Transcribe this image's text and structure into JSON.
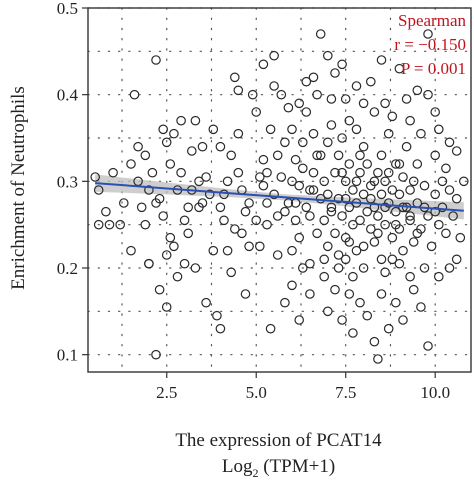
{
  "chart_data": {
    "type": "scatter",
    "title": "",
    "xlabel_line1": "The expression of PCAT14",
    "xlabel_line2_prefix": "Log",
    "xlabel_line2_sub": "2",
    "xlabel_line2_suffix": " (TPM+1)",
    "ylabel": "Enrichment of Neutrophils",
    "xlim": [
      0.3,
      11.0
    ],
    "ylim": [
      0.08,
      0.5
    ],
    "xticks": [
      2.5,
      5.0,
      7.5,
      10.0
    ],
    "xtick_labels": [
      "2.5",
      "5.0",
      "7.5",
      "10.0"
    ],
    "yticks": [
      0.1,
      0.2,
      0.3,
      0.4,
      0.5
    ],
    "ytick_labels": [
      "0.1",
      "0.2",
      "0.3",
      "0.4",
      "0.5"
    ],
    "grid": true,
    "annotation": {
      "method": "Spearman",
      "r_text": "r = −0.150",
      "p_text": "P = 0.001"
    },
    "regression": {
      "x": [
        0.5,
        10.8
      ],
      "y": [
        0.298,
        0.266
      ],
      "ci_halfwidth": 0.01
    },
    "points": [
      [
        0.5,
        0.305
      ],
      [
        0.6,
        0.29
      ],
      [
        0.9,
        0.25
      ],
      [
        1.2,
        0.25
      ],
      [
        0.6,
        0.25
      ],
      [
        1.5,
        0.22
      ],
      [
        1.6,
        0.4
      ],
      [
        1.7,
        0.34
      ],
      [
        1.9,
        0.33
      ],
      [
        1.7,
        0.3
      ],
      [
        2.0,
        0.29
      ],
      [
        2.0,
        0.205
      ],
      [
        2.0,
        0.205
      ],
      [
        1.9,
        0.25
      ],
      [
        2.1,
        0.31
      ],
      [
        2.2,
        0.275
      ],
      [
        2.2,
        0.44
      ],
      [
        2.3,
        0.28
      ],
      [
        2.4,
        0.26
      ],
      [
        2.5,
        0.345
      ],
      [
        2.6,
        0.235
      ],
      [
        2.6,
        0.32
      ],
      [
        2.7,
        0.355
      ],
      [
        2.8,
        0.29
      ],
      [
        2.9,
        0.37
      ],
      [
        2.9,
        0.31
      ],
      [
        3.0,
        0.255
      ],
      [
        3.1,
        0.27
      ],
      [
        3.1,
        0.24
      ],
      [
        3.3,
        0.2
      ],
      [
        3.3,
        0.37
      ],
      [
        3.4,
        0.3
      ],
      [
        3.5,
        0.275
      ],
      [
        3.5,
        0.34
      ],
      [
        2.3,
        0.175
      ],
      [
        2.5,
        0.155
      ],
      [
        2.2,
        0.1
      ],
      [
        3.8,
        0.22
      ],
      [
        3.8,
        0.36
      ],
      [
        3.6,
        0.16
      ],
      [
        4.0,
        0.34
      ],
      [
        4.0,
        0.27
      ],
      [
        4.1,
        0.255
      ],
      [
        4.2,
        0.3
      ],
      [
        4.2,
        0.22
      ],
      [
        4.3,
        0.33
      ],
      [
        4.4,
        0.42
      ],
      [
        4.5,
        0.405
      ],
      [
        4.5,
        0.355
      ],
      [
        4.5,
        0.31
      ],
      [
        4.6,
        0.29
      ],
      [
        4.7,
        0.265
      ],
      [
        4.6,
        0.24
      ],
      [
        4.8,
        0.225
      ],
      [
        4.3,
        0.195
      ],
      [
        4.0,
        0.13
      ],
      [
        3.9,
        0.145
      ],
      [
        5.0,
        0.38
      ],
      [
        5.1,
        0.305
      ],
      [
        5.2,
        0.325
      ],
      [
        5.2,
        0.295
      ],
      [
        5.3,
        0.275
      ],
      [
        5.3,
        0.25
      ],
      [
        5.4,
        0.36
      ],
      [
        5.5,
        0.445
      ],
      [
        5.5,
        0.285
      ],
      [
        5.6,
        0.33
      ],
      [
        5.6,
        0.215
      ],
      [
        5.7,
        0.305
      ],
      [
        5.8,
        0.265
      ],
      [
        5.8,
        0.345
      ],
      [
        5.9,
        0.385
      ],
      [
        5.9,
        0.275
      ],
      [
        6.0,
        0.3
      ],
      [
        6.0,
        0.18
      ],
      [
        6.1,
        0.325
      ],
      [
        6.1,
        0.255
      ],
      [
        6.2,
        0.235
      ],
      [
        6.2,
        0.295
      ],
      [
        6.3,
        0.315
      ],
      [
        6.3,
        0.345
      ],
      [
        6.4,
        0.27
      ],
      [
        6.4,
        0.38
      ],
      [
        6.5,
        0.26
      ],
      [
        6.5,
        0.29
      ],
      [
        6.5,
        0.205
      ],
      [
        6.6,
        0.355
      ],
      [
        6.6,
        0.31
      ],
      [
        6.7,
        0.24
      ],
      [
        6.7,
        0.4
      ],
      [
        6.8,
        0.28
      ],
      [
        6.8,
        0.33
      ],
      [
        6.9,
        0.255
      ],
      [
        6.9,
        0.3
      ],
      [
        7.0,
        0.345
      ],
      [
        7.0,
        0.225
      ],
      [
        7.0,
        0.285
      ],
      [
        7.1,
        0.395
      ],
      [
        7.1,
        0.265
      ],
      [
        7.2,
        0.31
      ],
      [
        7.2,
        0.24
      ],
      [
        7.3,
        0.33
      ],
      [
        7.3,
        0.28
      ],
      [
        7.3,
        0.2
      ],
      [
        7.4,
        0.35
      ],
      [
        7.4,
        0.26
      ],
      [
        7.5,
        0.3
      ],
      [
        7.5,
        0.395
      ],
      [
        7.5,
        0.235
      ],
      [
        7.6,
        0.27
      ],
      [
        7.6,
        0.32
      ],
      [
        7.7,
        0.25
      ],
      [
        7.7,
        0.29
      ],
      [
        7.8,
        0.36
      ],
      [
        7.8,
        0.22
      ],
      [
        7.8,
        0.275
      ],
      [
        7.9,
        0.31
      ],
      [
        7.9,
        0.255
      ],
      [
        8.0,
        0.34
      ],
      [
        8.0,
        0.285
      ],
      [
        8.0,
        0.2
      ],
      [
        8.1,
        0.265
      ],
      [
        8.1,
        0.32
      ],
      [
        8.2,
        0.245
      ],
      [
        8.2,
        0.295
      ],
      [
        8.3,
        0.38
      ],
      [
        8.3,
        0.27
      ],
      [
        8.3,
        0.23
      ],
      [
        8.4,
        0.31
      ],
      [
        8.4,
        0.26
      ],
      [
        8.5,
        0.33
      ],
      [
        8.5,
        0.285
      ],
      [
        8.5,
        0.21
      ],
      [
        8.6,
        0.25
      ],
      [
        8.6,
        0.3
      ],
      [
        8.7,
        0.275
      ],
      [
        8.7,
        0.355
      ],
      [
        8.8,
        0.235
      ],
      [
        8.8,
        0.29
      ],
      [
        8.9,
        0.265
      ],
      [
        8.9,
        0.32
      ],
      [
        9.0,
        0.245
      ],
      [
        9.0,
        0.285
      ],
      [
        9.1,
        0.305
      ],
      [
        9.1,
        0.22
      ],
      [
        9.2,
        0.27
      ],
      [
        9.2,
        0.34
      ],
      [
        9.3,
        0.255
      ],
      [
        9.3,
        0.29
      ],
      [
        9.4,
        0.23
      ],
      [
        9.5,
        0.275
      ],
      [
        9.5,
        0.32
      ],
      [
        9.6,
        0.245
      ],
      [
        9.7,
        0.295
      ],
      [
        9.8,
        0.26
      ],
      [
        9.9,
        0.225
      ],
      [
        10.0,
        0.285
      ],
      [
        10.0,
        0.33
      ],
      [
        10.1,
        0.25
      ],
      [
        10.2,
        0.27
      ],
      [
        10.3,
        0.24
      ],
      [
        10.5,
        0.26
      ],
      [
        10.6,
        0.28
      ],
      [
        10.7,
        0.235
      ],
      [
        10.4,
        0.345
      ],
      [
        10.1,
        0.36
      ],
      [
        7.0,
        0.15
      ],
      [
        7.2,
        0.175
      ],
      [
        7.4,
        0.14
      ],
      [
        7.6,
        0.17
      ],
      [
        7.7,
        0.125
      ],
      [
        7.9,
        0.16
      ],
      [
        8.1,
        0.145
      ],
      [
        8.3,
        0.115
      ],
      [
        8.5,
        0.17
      ],
      [
        8.7,
        0.13
      ],
      [
        8.9,
        0.16
      ],
      [
        9.1,
        0.14
      ],
      [
        9.4,
        0.175
      ],
      [
        9.6,
        0.155
      ],
      [
        9.8,
        0.11
      ],
      [
        10.1,
        0.19
      ],
      [
        10.4,
        0.2
      ],
      [
        8.4,
        0.095
      ],
      [
        6.5,
        0.17
      ],
      [
        6.2,
        0.14
      ],
      [
        5.8,
        0.16
      ],
      [
        5.4,
        0.13
      ],
      [
        4.7,
        0.17
      ],
      [
        3.4,
        0.27
      ],
      [
        6.8,
        0.47
      ],
      [
        7.0,
        0.445
      ],
      [
        6.6,
        0.42
      ],
      [
        7.2,
        0.425
      ],
      [
        7.4,
        0.435
      ],
      [
        7.8,
        0.41
      ],
      [
        8.2,
        0.415
      ],
      [
        8.5,
        0.44
      ],
      [
        9.0,
        0.43
      ],
      [
        9.2,
        0.395
      ],
      [
        9.5,
        0.405
      ],
      [
        8.0,
        0.39
      ],
      [
        7.6,
        0.37
      ],
      [
        7.1,
        0.365
      ],
      [
        6.4,
        0.415
      ],
      [
        6.2,
        0.39
      ],
      [
        5.7,
        0.4
      ],
      [
        5.5,
        0.41
      ],
      [
        5.2,
        0.435
      ],
      [
        4.9,
        0.4
      ],
      [
        9.8,
        0.47
      ],
      [
        9.8,
        0.4
      ],
      [
        10.0,
        0.38
      ],
      [
        9.3,
        0.37
      ],
      [
        8.8,
        0.375
      ],
      [
        8.6,
        0.39
      ],
      [
        9.6,
        0.355
      ],
      [
        10.6,
        0.335
      ],
      [
        10.8,
        0.3
      ],
      [
        10.3,
        0.315
      ],
      [
        6.0,
        0.36
      ],
      [
        6.3,
        0.2
      ],
      [
        6.9,
        0.19
      ],
      [
        7.3,
        0.215
      ],
      [
        7.7,
        0.19
      ],
      [
        8.0,
        0.225
      ],
      [
        8.6,
        0.195
      ],
      [
        9.0,
        0.205
      ],
      [
        9.3,
        0.19
      ],
      [
        9.7,
        0.2
      ],
      [
        6.7,
        0.33
      ],
      [
        7.4,
        0.31
      ],
      [
        7.9,
        0.33
      ],
      [
        8.3,
        0.3
      ],
      [
        8.7,
        0.31
      ],
      [
        9.1,
        0.27
      ],
      [
        9.4,
        0.3
      ],
      [
        9.7,
        0.27
      ],
      [
        10.0,
        0.265
      ],
      [
        10.4,
        0.29
      ],
      [
        5.6,
        0.26
      ],
      [
        6.1,
        0.275
      ],
      [
        6.6,
        0.29
      ],
      [
        7.1,
        0.27
      ],
      [
        7.5,
        0.28
      ],
      [
        7.8,
        0.3
      ],
      [
        8.2,
        0.28
      ],
      [
        8.6,
        0.27
      ],
      [
        8.9,
        0.25
      ],
      [
        9.3,
        0.26
      ],
      [
        3.7,
        0.285
      ],
      [
        3.2,
        0.335
      ],
      [
        2.8,
        0.19
      ],
      [
        2.5,
        0.215
      ],
      [
        1.8,
        0.27
      ],
      [
        1.3,
        0.275
      ],
      [
        1.0,
        0.31
      ],
      [
        0.8,
        0.265
      ],
      [
        1.5,
        0.32
      ],
      [
        2.4,
        0.36
      ],
      [
        2.7,
        0.225
      ],
      [
        3.0,
        0.205
      ],
      [
        3.2,
        0.29
      ],
      [
        3.6,
        0.305
      ],
      [
        4.1,
        0.285
      ],
      [
        4.4,
        0.245
      ],
      [
        4.8,
        0.275
      ],
      [
        5.0,
        0.255
      ],
      [
        5.1,
        0.225
      ],
      [
        5.3,
        0.31
      ],
      [
        7.6,
        0.23
      ],
      [
        8.4,
        0.24
      ],
      [
        9.0,
        0.32
      ],
      [
        9.5,
        0.24
      ],
      [
        10.2,
        0.3
      ],
      [
        6.0,
        0.22
      ],
      [
        6.9,
        0.21
      ],
      [
        7.5,
        0.21
      ],
      [
        8.8,
        0.21
      ],
      [
        10.6,
        0.21
      ]
    ]
  }
}
